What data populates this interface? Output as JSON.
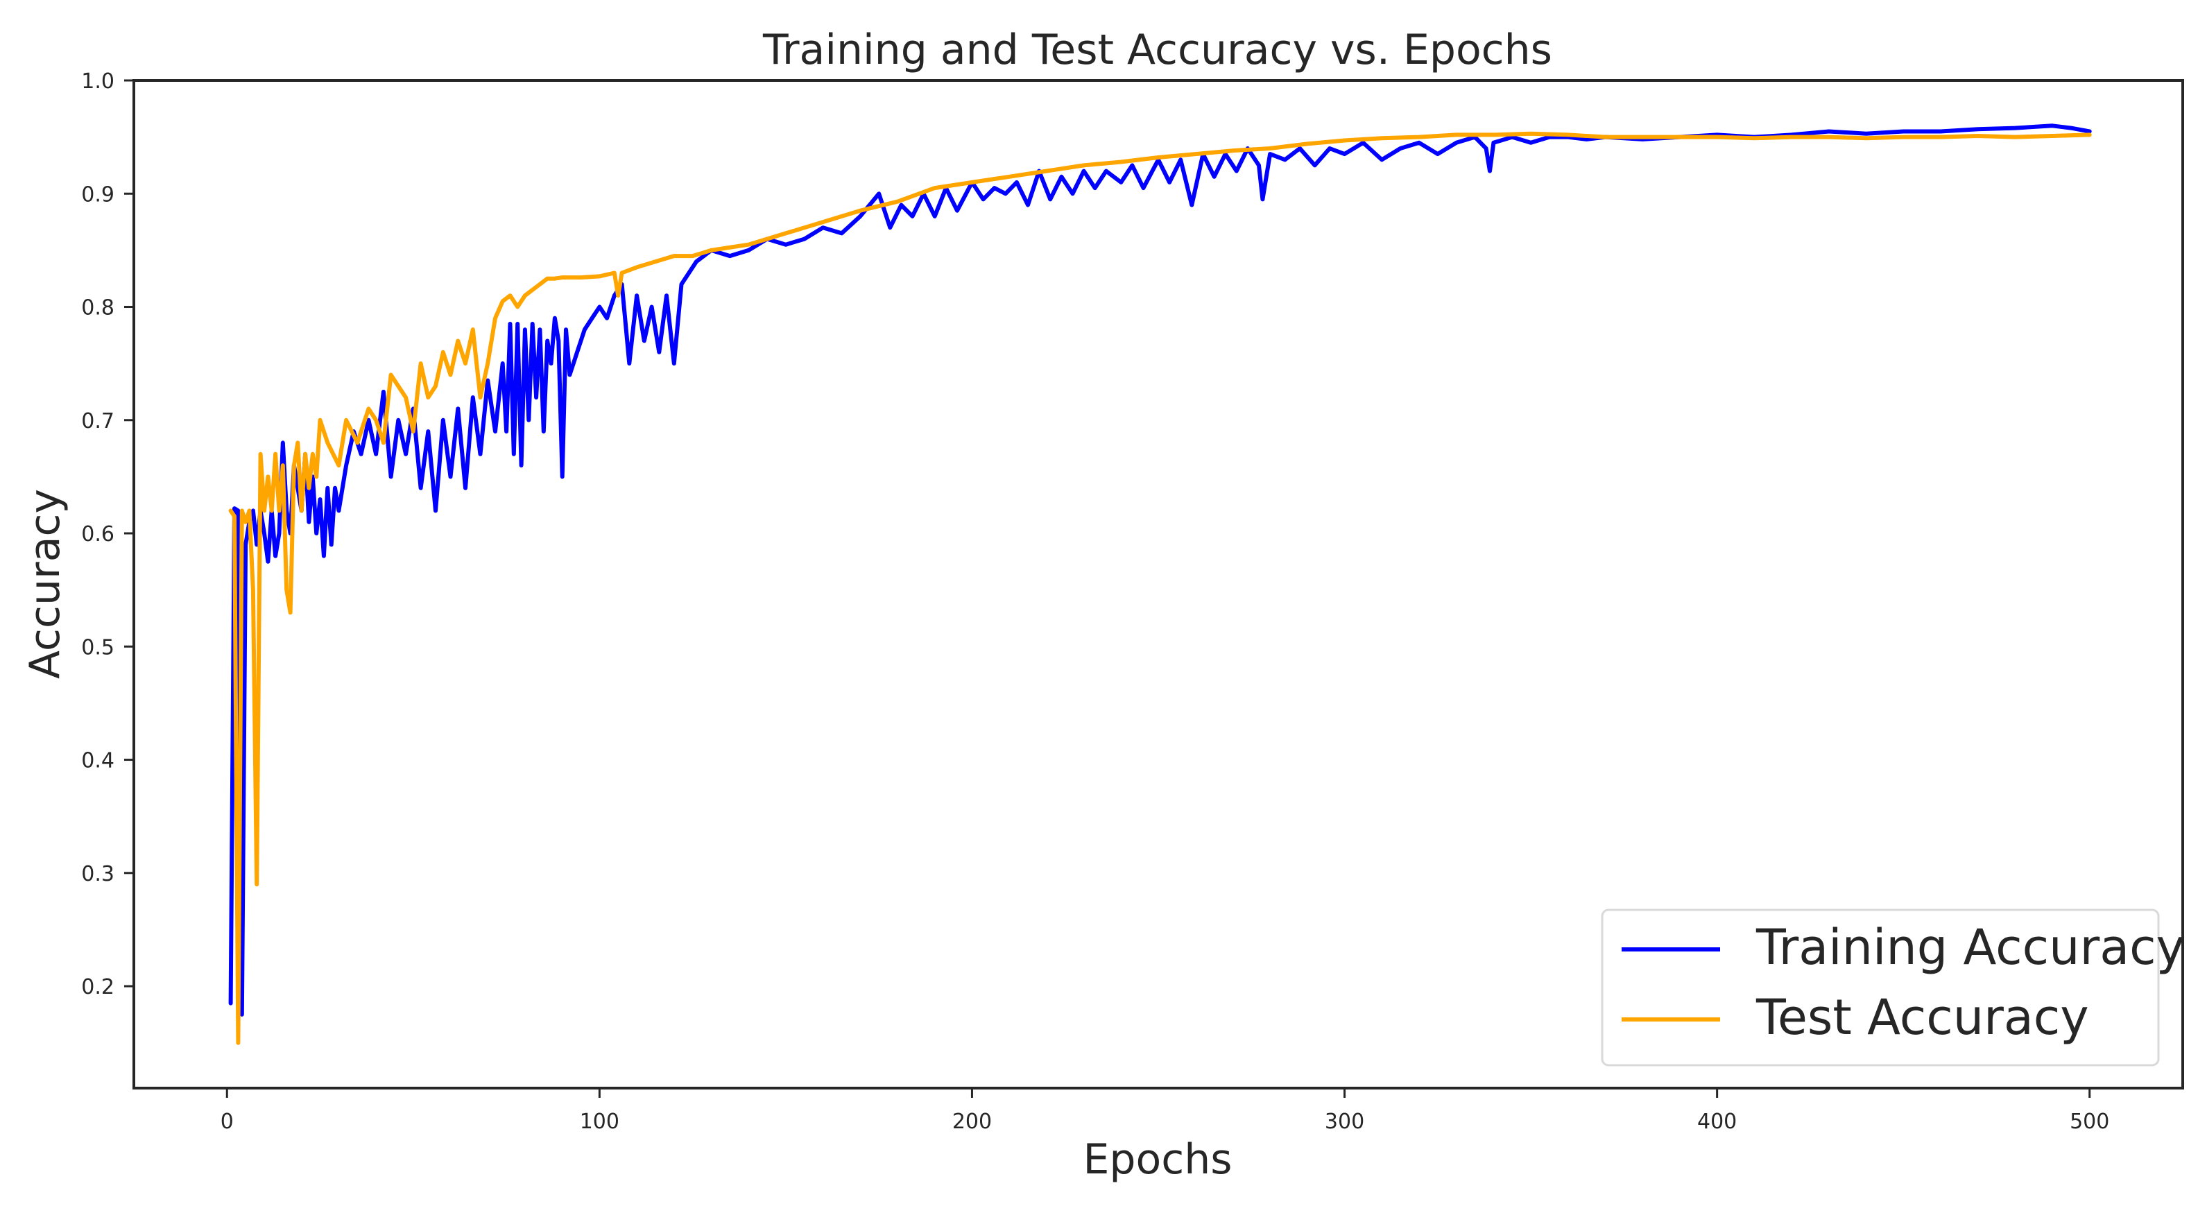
{
  "chart_data": {
    "type": "line",
    "title": "Training and Test Accuracy vs. Epochs",
    "xlabel": "Epochs",
    "ylabel": "Accuracy",
    "xlim": [
      -25,
      525
    ],
    "ylim": [
      0.11,
      1.0
    ],
    "xticks": [
      0,
      100,
      200,
      300,
      400,
      500
    ],
    "yticks": [
      0.2,
      0.3,
      0.4,
      0.5,
      0.6,
      0.7,
      0.8,
      0.9,
      1.0
    ],
    "grid": false,
    "legend_position": "lower-right",
    "series": [
      {
        "name": "Training Accuracy",
        "color": "#0000ff",
        "x": [
          1,
          2,
          3,
          4,
          5,
          6,
          7,
          8,
          9,
          10,
          11,
          12,
          13,
          14,
          15,
          16,
          17,
          18,
          19,
          20,
          21,
          22,
          23,
          24,
          25,
          26,
          27,
          28,
          29,
          30,
          32,
          34,
          36,
          38,
          40,
          42,
          44,
          46,
          48,
          50,
          52,
          54,
          56,
          58,
          60,
          62,
          64,
          66,
          68,
          70,
          72,
          74,
          75,
          76,
          77,
          78,
          79,
          80,
          81,
          82,
          83,
          84,
          85,
          86,
          87,
          88,
          89,
          90,
          91,
          92,
          94,
          96,
          98,
          100,
          102,
          104,
          106,
          108,
          110,
          112,
          114,
          116,
          118,
          120,
          122,
          124,
          126,
          128,
          130,
          135,
          140,
          145,
          150,
          155,
          160,
          165,
          170,
          175,
          178,
          181,
          184,
          187,
          190,
          193,
          196,
          200,
          203,
          206,
          209,
          212,
          215,
          218,
          221,
          224,
          227,
          230,
          233,
          236,
          240,
          243,
          246,
          250,
          253,
          256,
          259,
          262,
          265,
          268,
          271,
          274,
          277,
          278,
          280,
          284,
          288,
          292,
          296,
          300,
          305,
          310,
          315,
          320,
          325,
          330,
          335,
          338,
          339,
          340,
          345,
          350,
          355,
          360,
          365,
          370,
          380,
          390,
          400,
          410,
          420,
          430,
          440,
          450,
          460,
          470,
          480,
          490,
          495,
          500
        ],
        "values": [
          0.185,
          0.622,
          0.62,
          0.175,
          0.59,
          0.61,
          0.62,
          0.59,
          0.62,
          0.6,
          0.575,
          0.62,
          0.58,
          0.6,
          0.68,
          0.62,
          0.6,
          0.66,
          0.64,
          0.62,
          0.67,
          0.61,
          0.65,
          0.6,
          0.63,
          0.58,
          0.64,
          0.59,
          0.64,
          0.62,
          0.66,
          0.69,
          0.67,
          0.7,
          0.67,
          0.725,
          0.65,
          0.7,
          0.67,
          0.71,
          0.64,
          0.69,
          0.62,
          0.7,
          0.65,
          0.71,
          0.64,
          0.72,
          0.67,
          0.735,
          0.69,
          0.75,
          0.69,
          0.785,
          0.67,
          0.785,
          0.66,
          0.78,
          0.7,
          0.785,
          0.72,
          0.78,
          0.69,
          0.77,
          0.75,
          0.79,
          0.77,
          0.65,
          0.78,
          0.74,
          0.76,
          0.78,
          0.79,
          0.8,
          0.79,
          0.81,
          0.82,
          0.75,
          0.81,
          0.77,
          0.8,
          0.76,
          0.81,
          0.75,
          0.82,
          0.83,
          0.84,
          0.845,
          0.85,
          0.845,
          0.85,
          0.86,
          0.855,
          0.86,
          0.87,
          0.865,
          0.88,
          0.9,
          0.87,
          0.89,
          0.88,
          0.9,
          0.88,
          0.905,
          0.885,
          0.91,
          0.895,
          0.905,
          0.9,
          0.91,
          0.89,
          0.92,
          0.895,
          0.915,
          0.9,
          0.92,
          0.905,
          0.92,
          0.91,
          0.925,
          0.905,
          0.93,
          0.91,
          0.93,
          0.89,
          0.935,
          0.915,
          0.935,
          0.92,
          0.94,
          0.925,
          0.895,
          0.935,
          0.93,
          0.94,
          0.925,
          0.94,
          0.935,
          0.945,
          0.93,
          0.94,
          0.945,
          0.935,
          0.945,
          0.95,
          0.94,
          0.92,
          0.945,
          0.95,
          0.945,
          0.95,
          0.95,
          0.948,
          0.95,
          0.948,
          0.95,
          0.952,
          0.95,
          0.952,
          0.955,
          0.953,
          0.955,
          0.955,
          0.957,
          0.958,
          0.96,
          0.958,
          0.955
        ]
      },
      {
        "name": "Test Accuracy",
        "color": "#ffa500",
        "x": [
          1,
          2,
          3,
          4,
          5,
          6,
          7,
          8,
          9,
          10,
          11,
          12,
          13,
          14,
          15,
          16,
          17,
          18,
          19,
          20,
          21,
          22,
          23,
          24,
          25,
          27,
          30,
          32,
          35,
          38,
          40,
          42,
          44,
          46,
          48,
          50,
          52,
          54,
          56,
          58,
          60,
          62,
          64,
          66,
          68,
          70,
          72,
          74,
          76,
          78,
          80,
          82,
          84,
          86,
          88,
          90,
          95,
          100,
          104,
          105,
          106,
          110,
          115,
          120,
          125,
          130,
          140,
          150,
          160,
          170,
          180,
          190,
          200,
          210,
          220,
          230,
          240,
          250,
          260,
          270,
          280,
          290,
          300,
          310,
          320,
          330,
          340,
          350,
          360,
          370,
          380,
          390,
          400,
          410,
          420,
          430,
          440,
          450,
          460,
          470,
          480,
          490,
          500
        ],
        "values": [
          0.62,
          0.615,
          0.15,
          0.62,
          0.61,
          0.62,
          0.55,
          0.29,
          0.67,
          0.62,
          0.65,
          0.62,
          0.67,
          0.62,
          0.66,
          0.55,
          0.53,
          0.66,
          0.68,
          0.62,
          0.67,
          0.64,
          0.67,
          0.65,
          0.7,
          0.68,
          0.66,
          0.7,
          0.68,
          0.71,
          0.7,
          0.68,
          0.74,
          0.73,
          0.72,
          0.69,
          0.75,
          0.72,
          0.73,
          0.76,
          0.74,
          0.77,
          0.75,
          0.78,
          0.72,
          0.75,
          0.79,
          0.805,
          0.81,
          0.8,
          0.81,
          0.815,
          0.82,
          0.825,
          0.825,
          0.826,
          0.826,
          0.827,
          0.83,
          0.81,
          0.83,
          0.835,
          0.84,
          0.845,
          0.845,
          0.85,
          0.855,
          0.865,
          0.875,
          0.885,
          0.893,
          0.905,
          0.91,
          0.915,
          0.92,
          0.925,
          0.928,
          0.932,
          0.935,
          0.938,
          0.94,
          0.944,
          0.947,
          0.949,
          0.95,
          0.952,
          0.952,
          0.953,
          0.952,
          0.95,
          0.95,
          0.95,
          0.95,
          0.949,
          0.95,
          0.95,
          0.949,
          0.95,
          0.95,
          0.951,
          0.95,
          0.951,
          0.952
        ]
      }
    ]
  }
}
